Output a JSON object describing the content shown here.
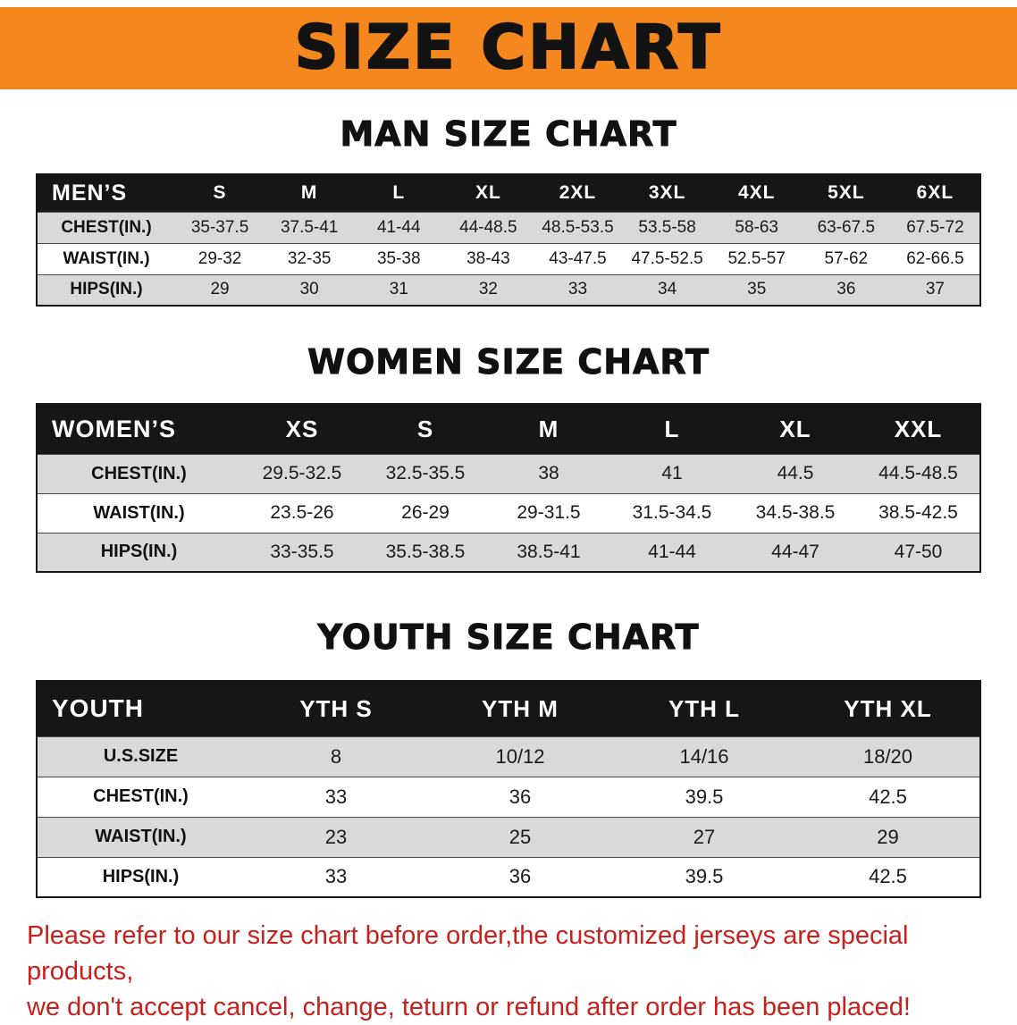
{
  "colors": {
    "orange": "#f5871f",
    "header_bg": "#161616",
    "gray_row": "#d9d9d9",
    "red": "#c9201d"
  },
  "banner": {
    "title": "SIZE CHART"
  },
  "sections": [
    {
      "heading": "MAN SIZE CHART",
      "table": {
        "header": [
          "MEN’S",
          "S",
          "M",
          "L",
          "XL",
          "2XL",
          "3XL",
          "4XL",
          "5XL",
          "6XL"
        ],
        "rows": [
          [
            "CHEST(IN.)",
            "35-37.5",
            "37.5-41",
            "41-44",
            "44-48.5",
            "48.5-53.5",
            "53.5-58",
            "58-63",
            "63-67.5",
            "67.5-72"
          ],
          [
            "WAIST(IN.)",
            "29-32",
            "32-35",
            "35-38",
            "38-43",
            "43-47.5",
            "47.5-52.5",
            "52.5-57",
            "57-62",
            "62-66.5"
          ],
          [
            "HIPS(IN.)",
            "29",
            "30",
            "31",
            "32",
            "33",
            "34",
            "35",
            "36",
            "37"
          ]
        ]
      }
    },
    {
      "heading": "WOMEN SIZE CHART",
      "table": {
        "header": [
          "WOMEN’S",
          "XS",
          "S",
          "M",
          "L",
          "XL",
          "XXL"
        ],
        "rows": [
          [
            "CHEST(IN.)",
            "29.5-32.5",
            "32.5-35.5",
            "38",
            "41",
            "44.5",
            "44.5-48.5"
          ],
          [
            "WAIST(IN.)",
            "23.5-26",
            "26-29",
            "29-31.5",
            "31.5-34.5",
            "34.5-38.5",
            "38.5-42.5"
          ],
          [
            "HIPS(IN.)",
            "33-35.5",
            "35.5-38.5",
            "38.5-41",
            "41-44",
            "44-47",
            "47-50"
          ]
        ]
      }
    },
    {
      "heading": "YOUTH SIZE CHART",
      "table": {
        "header": [
          "YOUTH",
          "YTH S",
          "YTH M",
          "YTH L",
          "YTH XL"
        ],
        "rows": [
          [
            "U.S.SIZE",
            "8",
            "10/12",
            "14/16",
            "18/20"
          ],
          [
            "CHEST(IN.)",
            "33",
            "36",
            "39.5",
            "42.5"
          ],
          [
            "WAIST(IN.)",
            "23",
            "25",
            "27",
            "29"
          ],
          [
            "HIPS(IN.)",
            "33",
            "36",
            "39.5",
            "42.5"
          ]
        ]
      }
    }
  ],
  "footer": {
    "line1": "Please refer to our size chart before order,the customized jerseys are special products,",
    "line2": "we don't accept cancel, change, teturn or refund after order has been placed!"
  }
}
